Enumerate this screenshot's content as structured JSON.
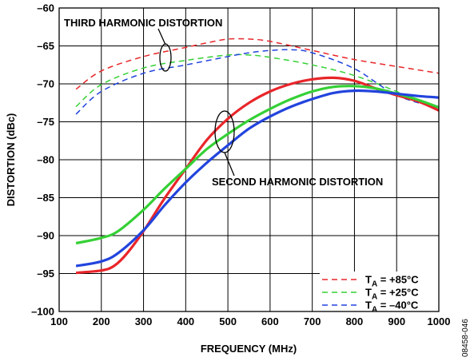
{
  "chart_data": {
    "type": "line",
    "xlabel": "FREQUENCY (MHz)",
    "ylabel": "DISTORTION (dBc)",
    "xlim": [
      100,
      1000
    ],
    "ylim": [
      -100,
      -60
    ],
    "xticks": [
      100,
      200,
      300,
      400,
      500,
      600,
      700,
      800,
      900,
      1000
    ],
    "yticks": [
      -100,
      -95,
      -90,
      -85,
      -80,
      -75,
      -70,
      -65,
      -60
    ],
    "xtick_labels": [
      "100",
      "200",
      "300",
      "400",
      "500",
      "600",
      "700",
      "800",
      "900",
      "1000"
    ],
    "ytick_labels": [
      "–100",
      "–95",
      "–90",
      "–85",
      "–80",
      "–75",
      "–70",
      "–65",
      "–60"
    ],
    "grid": true,
    "legend_position": "bottom-right",
    "annotations": [
      "THIRD HARMONIC DISTORTION",
      "SECOND HARMONIC DISTORTION"
    ],
    "legend": {
      "prefix": "T",
      "subscript": "A",
      "entries": [
        {
          "label": " = +85°C",
          "color": "#e8262a",
          "style": "dashed"
        },
        {
          "label": " = +25°C",
          "color": "#35d035",
          "style": "dashed"
        },
        {
          "label": " = –40°C",
          "color": "#2244dd",
          "style": "dashed"
        }
      ]
    },
    "series": [
      {
        "group": "third",
        "temp": "+85°C",
        "color": "#e8262a",
        "style": "dashed",
        "x": [
          140,
          200,
          300,
          400,
          450,
          500,
          550,
          600,
          700,
          800,
          900,
          1000
        ],
        "y": [
          -70.7,
          -68.3,
          -66.4,
          -65.2,
          -64.6,
          -64.1,
          -64.1,
          -64.4,
          -65.6,
          -66.8,
          -67.7,
          -68.6
        ]
      },
      {
        "group": "third",
        "temp": "+25°C",
        "color": "#35d035",
        "style": "dashed",
        "x": [
          140,
          200,
          300,
          400,
          500,
          550,
          600,
          700,
          800,
          900,
          1000
        ],
        "y": [
          -73.0,
          -70.1,
          -67.9,
          -66.9,
          -66.2,
          -66.2,
          -66.5,
          -67.5,
          -68.9,
          -71.0,
          -73.3
        ]
      },
      {
        "group": "third",
        "temp": "–40°C",
        "color": "#2244dd",
        "style": "dashed",
        "x": [
          140,
          200,
          300,
          400,
          500,
          550,
          600,
          650,
          700,
          800,
          900,
          1000
        ],
        "y": [
          -74.0,
          -71.0,
          -68.6,
          -67.5,
          -66.4,
          -65.9,
          -65.6,
          -65.5,
          -65.9,
          -68.0,
          -71.5,
          -73.2
        ]
      },
      {
        "group": "second",
        "temp": "+85°C",
        "color": "#e8262a",
        "style": "solid",
        "x": [
          140,
          200,
          230,
          260,
          300,
          350,
          400,
          450,
          500,
          550,
          600,
          650,
          700,
          750,
          800,
          850,
          900,
          950,
          1000
        ],
        "y": [
          -94.9,
          -94.6,
          -94.0,
          -92.4,
          -89.4,
          -85.1,
          -81.2,
          -77.4,
          -74.6,
          -72.5,
          -71.0,
          -70.0,
          -69.4,
          -69.2,
          -69.6,
          -70.6,
          -71.5,
          -72.3,
          -73.5
        ]
      },
      {
        "group": "second",
        "temp": "+25°C",
        "color": "#35d035",
        "style": "solid",
        "x": [
          140,
          200,
          240,
          300,
          350,
          400,
          450,
          500,
          550,
          600,
          650,
          700,
          750,
          800,
          850,
          900,
          950,
          1000
        ],
        "y": [
          -91.0,
          -90.3,
          -89.4,
          -86.6,
          -83.8,
          -81.2,
          -78.6,
          -76.6,
          -74.8,
          -73.3,
          -72.0,
          -71.0,
          -70.4,
          -70.3,
          -70.6,
          -71.3,
          -72.1,
          -73.1
        ]
      },
      {
        "group": "second",
        "temp": "–40°C",
        "color": "#2244dd",
        "style": "solid",
        "x": [
          140,
          200,
          240,
          300,
          350,
          400,
          450,
          500,
          550,
          600,
          650,
          700,
          750,
          800,
          850,
          900,
          950,
          1000
        ],
        "y": [
          -94.0,
          -93.4,
          -92.3,
          -89.3,
          -86.0,
          -83.0,
          -80.4,
          -78.1,
          -75.9,
          -74.3,
          -73.0,
          -72.0,
          -71.2,
          -70.9,
          -71.0,
          -71.3,
          -71.6,
          -71.8
        ]
      }
    ]
  },
  "figure_id": "08458-046"
}
